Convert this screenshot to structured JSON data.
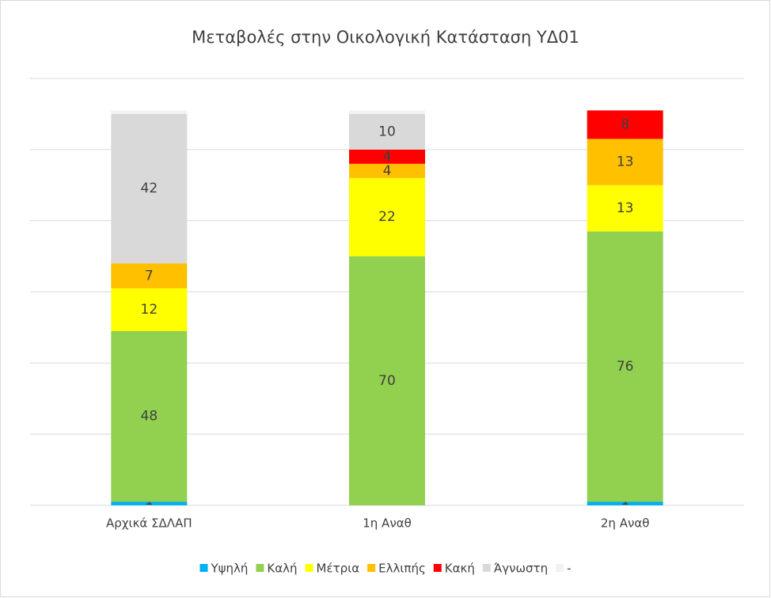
{
  "chart_data": {
    "type": "stacked_bar",
    "title": "Μεταβολές στην Οικολογική Κατάσταση ΥΔ01",
    "categories": [
      "Αρχικά ΣΔΛΑΠ",
      "1η Αναθ",
      "2η Αναθ"
    ],
    "series": [
      {
        "name": "Υψηλή",
        "color": "#00b0f0",
        "values": [
          1,
          0,
          1
        ],
        "data_labels": true
      },
      {
        "name": "Καλή",
        "color": "#92d050",
        "values": [
          48,
          70,
          76
        ],
        "data_labels": true
      },
      {
        "name": "Μέτρια",
        "color": "#ffff00",
        "values": [
          12,
          22,
          13
        ],
        "data_labels": true
      },
      {
        "name": "Ελλιπής",
        "color": "#ffc000",
        "values": [
          7,
          4,
          13
        ],
        "data_labels": true
      },
      {
        "name": "Κακή",
        "color": "#ff0000",
        "values": [
          0,
          4,
          8
        ],
        "data_labels": true
      },
      {
        "name": "Άγνωστη",
        "color": "#d9d9d9",
        "values": [
          42,
          10,
          0
        ],
        "data_labels": true
      },
      {
        "name": "-",
        "color": "#f2f2f2",
        "values": [
          1,
          1,
          0
        ],
        "data_labels": false
      }
    ],
    "ylim": [
      0,
      120
    ],
    "yticks": [
      0,
      20,
      40,
      60,
      80,
      100,
      120
    ],
    "grid": true,
    "legend": "bottom"
  }
}
